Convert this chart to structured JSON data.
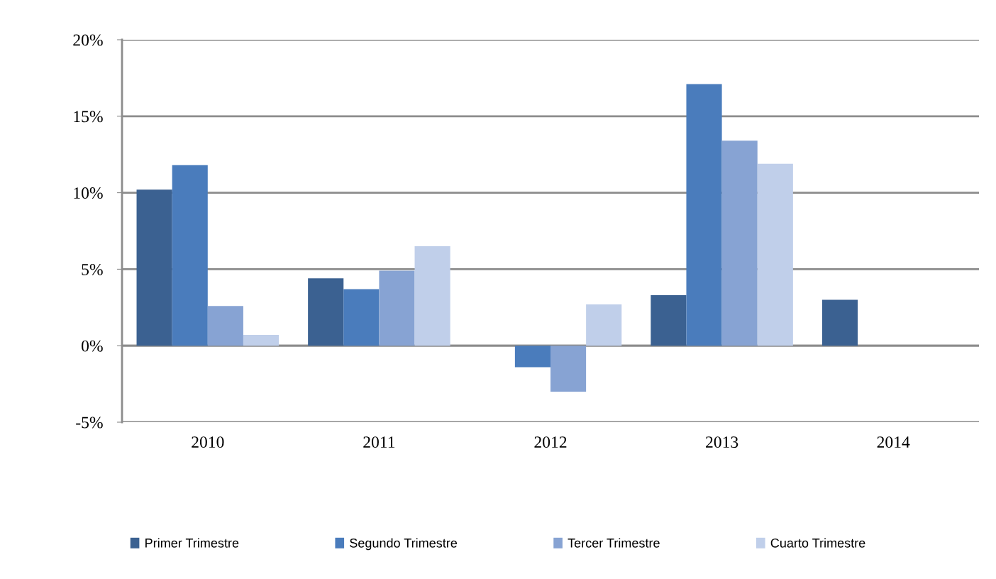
{
  "chart_data": {
    "type": "bar",
    "categories": [
      "2010",
      "2011",
      "2012",
      "2013",
      "2014"
    ],
    "series": [
      {
        "name": "Primer Trimestre",
        "color": "#3b6191",
        "values": [
          10.2,
          4.4,
          null,
          3.3,
          3.0
        ]
      },
      {
        "name": "Segundo Trimestre",
        "color": "#4a7cbc",
        "values": [
          11.8,
          3.7,
          -1.4,
          17.1,
          null
        ]
      },
      {
        "name": "Tercer Trimestre",
        "color": "#87a3d3",
        "values": [
          2.6,
          4.9,
          -3.0,
          13.4,
          null
        ]
      },
      {
        "name": "Cuarto Trimestre",
        "color": "#c0cfea",
        "values": [
          0.7,
          6.5,
          2.7,
          11.9,
          null
        ]
      }
    ],
    "ylim": [
      -5,
      20
    ],
    "yticks": [
      {
        "value": -5,
        "label": "-5%"
      },
      {
        "value": 0,
        "label": "0%"
      },
      {
        "value": 5,
        "label": "5%"
      },
      {
        "value": 10,
        "label": "10%"
      },
      {
        "value": 15,
        "label": "15%"
      },
      {
        "value": 20,
        "label": "20%"
      }
    ],
    "grid": "y",
    "legend": "bottom"
  }
}
